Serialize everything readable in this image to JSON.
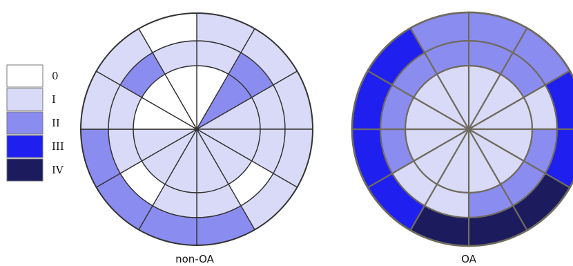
{
  "legend": {
    "items": [
      {
        "label": "0",
        "color": "#ffffff"
      },
      {
        "label": "I",
        "color": "#d9daf7"
      },
      {
        "label": "II",
        "color": "#8b8cf0"
      },
      {
        "label": "III",
        "color": "#1f1ff0"
      },
      {
        "label": "IV",
        "color": "#1b1b5e"
      }
    ]
  },
  "panels": [
    {
      "label": "non-OA",
      "rings": [
        [
          "0",
          "II",
          "I",
          "I",
          "I",
          "I",
          "I",
          "I",
          "I",
          "0",
          "0",
          "0"
        ],
        [
          "I",
          "II",
          "I",
          "I",
          "0",
          "I",
          "I",
          "0",
          "I",
          "I",
          "II",
          "I"
        ],
        [
          "I",
          "I",
          "I",
          "I",
          "I",
          "II",
          "II",
          "II",
          "II",
          "I",
          "I",
          "0"
        ]
      ]
    },
    {
      "label": "OA",
      "rings": [
        [
          "I",
          "I",
          "I",
          "I",
          "I",
          "I",
          "I",
          "I",
          "I",
          "I",
          "I",
          "I"
        ],
        [
          "II",
          "II",
          "I",
          "II",
          "II",
          "II",
          "I",
          "I",
          "II",
          "II",
          "II",
          "II"
        ],
        [
          "II",
          "II",
          "III",
          "III",
          "IV",
          "IV",
          "IV",
          "III",
          "III",
          "III",
          "III",
          "II"
        ]
      ]
    }
  ]
}
